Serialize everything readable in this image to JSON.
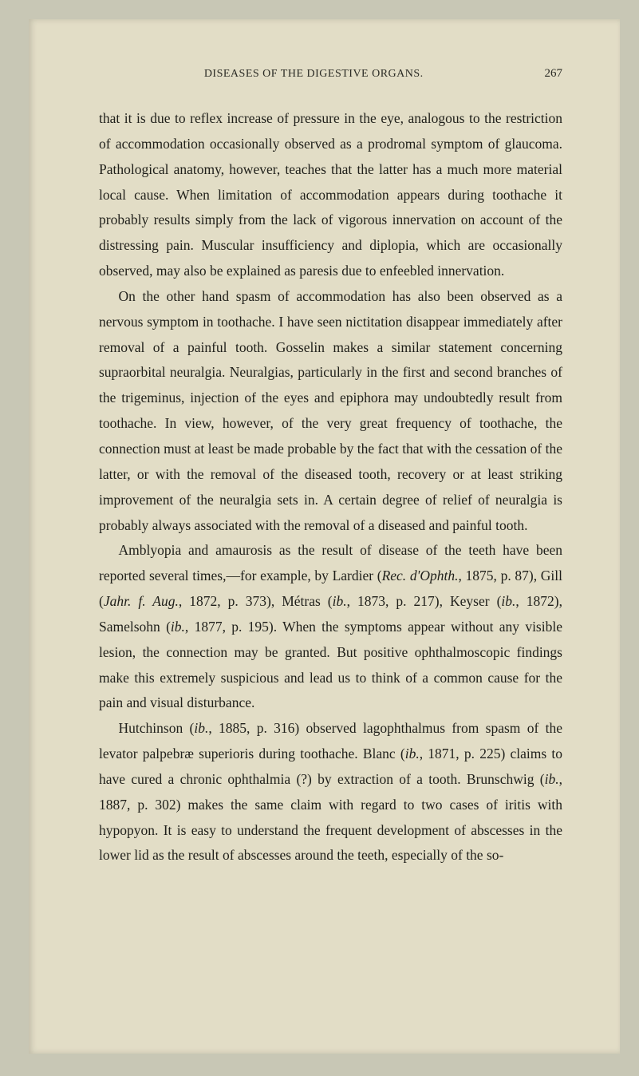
{
  "header": {
    "running_title": "DISEASES OF THE DIGESTIVE ORGANS.",
    "page_number": "267"
  },
  "paragraphs": {
    "p1": "that it is due to reflex increase of pressure in the eye, analogous to the restriction of accommodation occasionally observed as a prodromal symptom of glaucoma. Pathological anatomy, however, teaches that the latter has a much more material local cause. When limitation of accommodation appears during toothache it probably results simply from the lack of vigorous innervation on account of the distressing pain. Muscular insufficiency and diplopia, which are occasionally observed, may also be explained as paresis due to enfeebled innervation.",
    "p2": "On the other hand spasm of accommodation has also been observed as a nervous symptom in toothache. I have seen nictitation disappear immediately after removal of a painful tooth. Gosselin makes a similar statement concerning supraorbital neuralgia. Neuralgias, particularly in the first and second branches of the trigeminus, injection of the eyes and epiphora may undoubtedly result from toothache. In view, however, of the very great frequency of toothache, the connection must at least be made probable by the fact that with the cessation of the latter, or with the removal of the diseased tooth, recovery or at least striking improvement of the neuralgia sets in. A certain degree of relief of neuralgia is probably always associated with the removal of a diseased and painful tooth.",
    "p3_a": "Amblyopia and amaurosis as the result of disease of the teeth have been reported several times,—for example, by Lardier (",
    "p3_rec": "Rec. d'Ophth.",
    "p3_b": ", 1875, p. 87), Gill (",
    "p3_jahr": "Jahr. f. Aug.",
    "p3_c": ", 1872, p. 373), Métras (",
    "p3_ib1": "ib.",
    "p3_d": ", 1873, p. 217), Keyser (",
    "p3_ib2": "ib.",
    "p3_e": ", 1872), Samelsohn (",
    "p3_ib3": "ib.",
    "p3_f": ", 1877, p. 195). When the symptoms appear without any visible lesion, the connection may be granted. But positive ophthalmoscopic findings make this extremely suspicious and lead us to think of a common cause for the pain and visual disturbance.",
    "p4_a": "Hutchinson (",
    "p4_ib1": "ib.",
    "p4_b": ", 1885, p. 316) observed lagophthalmus from spasm of the levator palpebræ superioris during toothache. Blanc (",
    "p4_ib2": "ib.",
    "p4_c": ", 1871, p. 225) claims to have cured a chronic ophthalmia (?) by extraction of a tooth. Brunschwig (",
    "p4_ib3": "ib.",
    "p4_d": ", 1887, p. 302) makes the same claim with regard to two cases of iritis with hypopyon. It is easy to understand the frequent development of abscesses in the lower lid as the result of abscesses around the teeth, especially of the so-"
  },
  "colors": {
    "page_bg": "#e2ddc6",
    "outer_bg": "#c8c7b5",
    "text": "#1f1f1a"
  },
  "typography": {
    "body_fontsize": 17.5,
    "body_lineheight": 1.82,
    "header_fontsize": 14
  }
}
